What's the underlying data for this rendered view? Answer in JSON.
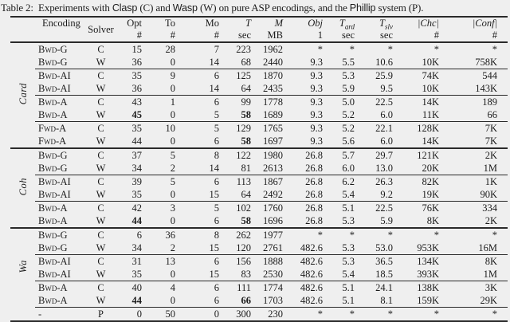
{
  "title": {
    "part1": "Table 2:  Experiments with ",
    "clasp": "Clasp",
    "part2": " (C) and ",
    "wasp": "Wasp",
    "part3": " (W) on pure ASP encodings, and the ",
    "phillip": "Phillip",
    "part4": " system (P)."
  },
  "header": {
    "encoding": "Encoding",
    "solver": "Solver",
    "cols": [
      {
        "line1": "Opt",
        "line2": "#"
      },
      {
        "line1": "To",
        "line2": "#"
      },
      {
        "line1": "Mo",
        "line2": "#"
      },
      {
        "line1": "T",
        "line2": "sec"
      },
      {
        "line1": "M",
        "line2": "MB"
      },
      {
        "line1": "Obj",
        "line2": "1"
      },
      {
        "line1": "T",
        "sub": "grd",
        "line2": "sec"
      },
      {
        "line1": "T",
        "sub": "slv",
        "line2": "sec"
      },
      {
        "line1": "|Chc|",
        "line2": "#"
      },
      {
        "line1": "|Conf|",
        "line2": "#"
      }
    ]
  },
  "sections": [
    {
      "label": "Card",
      "divider": "none",
      "rows": [
        {
          "encoding": "Bwd-G",
          "solver": "C",
          "values": [
            "15",
            "28",
            "7",
            "223",
            "1962",
            "*",
            "*",
            "*",
            "*",
            "*"
          ],
          "bold": [],
          "cline": false
        },
        {
          "encoding": "Bwd-G",
          "solver": "W",
          "values": [
            "36",
            "0",
            "14",
            "68",
            "2440",
            "9.3",
            "5.5",
            "10.6",
            "10K",
            "758K"
          ],
          "bold": [],
          "cline": false
        },
        {
          "encoding": "Bwd-AI",
          "solver": "C",
          "values": [
            "35",
            "9",
            "6",
            "125",
            "1870",
            "9.3",
            "5.3",
            "25.9",
            "74K",
            "544"
          ],
          "bold": [],
          "cline": true
        },
        {
          "encoding": "Bwd-AI",
          "solver": "W",
          "values": [
            "36",
            "0",
            "14",
            "64",
            "2435",
            "9.3",
            "5.9",
            "9.5",
            "10K",
            "143K"
          ],
          "bold": [],
          "cline": false
        },
        {
          "encoding": "Bwd-A",
          "solver": "C",
          "values": [
            "43",
            "1",
            "6",
            "99",
            "1778",
            "9.3",
            "5.0",
            "22.5",
            "14K",
            "189"
          ],
          "bold": [],
          "cline": true
        },
        {
          "encoding": "Bwd-A",
          "solver": "W",
          "values": [
            "45",
            "0",
            "5",
            "58",
            "1689",
            "9.3",
            "5.2",
            "6.0",
            "11K",
            "66"
          ],
          "bold": [
            0,
            3
          ],
          "cline": false
        },
        {
          "encoding": "Fwd-A",
          "solver": "C",
          "values": [
            "35",
            "10",
            "5",
            "129",
            "1765",
            "9.3",
            "5.2",
            "22.1",
            "128K",
            "7K"
          ],
          "bold": [],
          "cline": true
        },
        {
          "encoding": "Fwd-A",
          "solver": "W",
          "values": [
            "44",
            "0",
            "6",
            "58",
            "1697",
            "9.3",
            "5.6",
            "6.0",
            "14K",
            "7K"
          ],
          "bold": [
            3
          ],
          "cline": false
        }
      ]
    },
    {
      "label": "Coh",
      "divider": "thick",
      "rows": [
        {
          "encoding": "Bwd-G",
          "solver": "C",
          "values": [
            "37",
            "5",
            "8",
            "122",
            "1980",
            "26.8",
            "5.7",
            "29.7",
            "121K",
            "2K"
          ],
          "bold": [],
          "cline": false
        },
        {
          "encoding": "Bwd-G",
          "solver": "W",
          "values": [
            "34",
            "2",
            "14",
            "81",
            "2613",
            "26.8",
            "6.0",
            "13.0",
            "20K",
            "1M"
          ],
          "bold": [],
          "cline": false
        },
        {
          "encoding": "Bwd-AI",
          "solver": "C",
          "values": [
            "39",
            "5",
            "6",
            "113",
            "1867",
            "26.8",
            "6.2",
            "26.3",
            "82K",
            "1K"
          ],
          "bold": [],
          "cline": true
        },
        {
          "encoding": "Bwd-AI",
          "solver": "W",
          "values": [
            "35",
            "0",
            "15",
            "64",
            "2492",
            "26.8",
            "5.4",
            "9.2",
            "19K",
            "90K"
          ],
          "bold": [],
          "cline": false
        },
        {
          "encoding": "Bwd-A",
          "solver": "C",
          "values": [
            "42",
            "3",
            "5",
            "102",
            "1760",
            "26.8",
            "5.1",
            "22.5",
            "76K",
            "334"
          ],
          "bold": [],
          "cline": true
        },
        {
          "encoding": "Bwd-A",
          "solver": "W",
          "values": [
            "44",
            "0",
            "6",
            "58",
            "1696",
            "26.8",
            "5.3",
            "5.9",
            "8K",
            "2K"
          ],
          "bold": [
            0,
            3
          ],
          "cline": false
        }
      ]
    },
    {
      "label": "Wa",
      "divider": "thick",
      "rows": [
        {
          "encoding": "Bwd-G",
          "solver": "C",
          "values": [
            "6",
            "36",
            "8",
            "262",
            "1977",
            "*",
            "*",
            "*",
            "*",
            "*"
          ],
          "bold": [],
          "cline": false
        },
        {
          "encoding": "Bwd-G",
          "solver": "W",
          "values": [
            "34",
            "2",
            "15",
            "120",
            "2761",
            "482.6",
            "5.3",
            "53.0",
            "953K",
            "16M"
          ],
          "bold": [],
          "cline": false
        },
        {
          "encoding": "Bwd-AI",
          "solver": "C",
          "values": [
            "31",
            "13",
            "6",
            "156",
            "1888",
            "482.6",
            "5.3",
            "36.5",
            "134K",
            "8K"
          ],
          "bold": [],
          "cline": true
        },
        {
          "encoding": "Bwd-AI",
          "solver": "W",
          "values": [
            "35",
            "0",
            "15",
            "83",
            "2530",
            "482.6",
            "5.4",
            "18.5",
            "393K",
            "1M"
          ],
          "bold": [],
          "cline": false
        },
        {
          "encoding": "Bwd-A",
          "solver": "C",
          "values": [
            "40",
            "4",
            "6",
            "111",
            "1774",
            "482.6",
            "5.1",
            "24.1",
            "138K",
            "3K"
          ],
          "bold": [],
          "cline": true
        },
        {
          "encoding": "Bwd-A",
          "solver": "W",
          "values": [
            "44",
            "0",
            "6",
            "66",
            "1703",
            "482.6",
            "5.1",
            "8.1",
            "159K",
            "29K"
          ],
          "bold": [
            0,
            3
          ],
          "cline": false
        }
      ]
    },
    {
      "label": "",
      "divider": "cline",
      "rows": [
        {
          "encoding": "-",
          "solver": "P",
          "values": [
            "0",
            "50",
            "0",
            "300",
            "230",
            "*",
            "*",
            "*",
            "*",
            "*"
          ],
          "bold": [],
          "cline": false
        }
      ]
    }
  ]
}
